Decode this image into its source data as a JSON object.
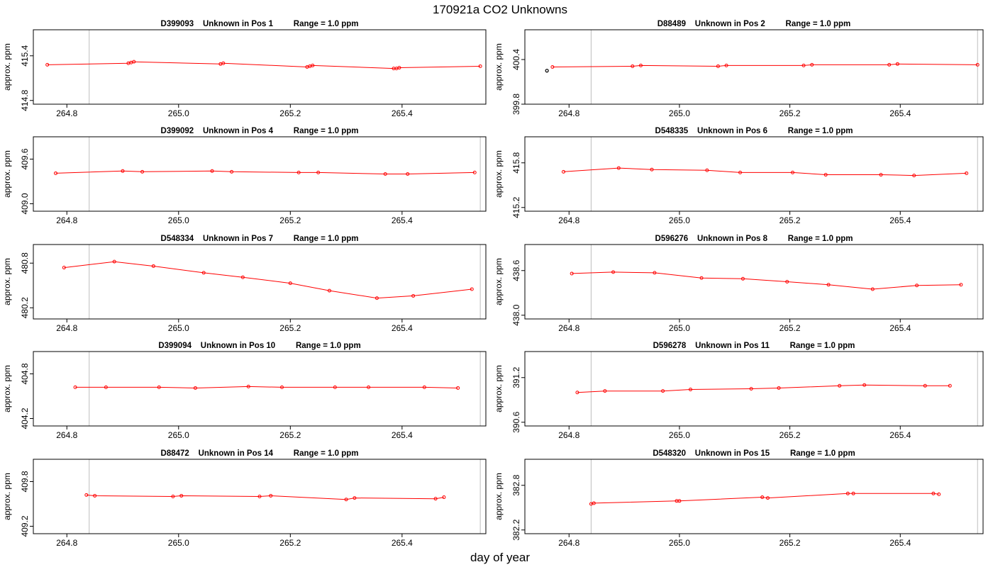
{
  "figure": {
    "title": "170921a  CO2 Unknowns",
    "xlabel": "day of year",
    "ylabel": "approx. ppm"
  },
  "chart_data": [
    {
      "type": "line",
      "title": "D399093    Unknown in Pos 1         Range = 1.0 ppm",
      "xlim": [
        264.74,
        265.55
      ],
      "ylim": [
        414.75,
        415.75
      ],
      "xticks": [
        "264.8",
        "265.0",
        "265.2",
        "265.4"
      ],
      "yticks": [
        "414.8",
        "415.4"
      ],
      "vlines": [
        264.84,
        265.55
      ],
      "x": [
        264.765,
        264.91,
        264.915,
        264.92,
        265.075,
        265.08,
        265.23,
        265.235,
        265.24,
        265.385,
        265.39,
        265.395,
        265.54
      ],
      "y": [
        415.28,
        415.3,
        415.31,
        415.32,
        415.29,
        415.3,
        415.25,
        415.26,
        415.27,
        415.23,
        415.23,
        415.24,
        415.26
      ]
    },
    {
      "type": "line",
      "title": "D88489    Unknown in Pos 2         Range = 1.0 ppm",
      "xlim": [
        264.72,
        265.55
      ],
      "ylim": [
        399.8,
        400.8
      ],
      "xticks": [
        "264.8",
        "265.0",
        "265.2",
        "265.4"
      ],
      "yticks": [
        "399.8",
        "400.4"
      ],
      "vlines": [
        264.84,
        265.54
      ],
      "x": [
        264.77,
        264.915,
        264.93,
        265.07,
        265.085,
        265.225,
        265.24,
        265.38,
        265.395,
        265.54
      ],
      "y": [
        400.3,
        400.31,
        400.32,
        400.31,
        400.32,
        400.32,
        400.33,
        400.33,
        400.34,
        400.33
      ],
      "outlier": {
        "x": 264.76,
        "y": 400.25
      }
    },
    {
      "type": "line",
      "title": "D399092    Unknown in Pos 4         Range = 1.0 ppm",
      "xlim": [
        264.74,
        265.55
      ],
      "ylim": [
        408.9,
        409.9
      ],
      "xticks": [
        "264.8",
        "265.0",
        "265.2",
        "265.4"
      ],
      "yticks": [
        "409.0",
        "409.6"
      ],
      "vlines": [
        264.84,
        265.54
      ],
      "x": [
        264.78,
        264.9,
        264.935,
        265.06,
        265.095,
        265.215,
        265.25,
        265.37,
        265.41,
        265.53
      ],
      "y": [
        409.41,
        409.44,
        409.43,
        409.44,
        409.43,
        409.42,
        409.42,
        409.4,
        409.4,
        409.42
      ]
    },
    {
      "type": "line",
      "title": "D548335    Unknown in Pos 6         Range = 1.0 ppm",
      "xlim": [
        264.72,
        265.55
      ],
      "ylim": [
        415.15,
        416.15
      ],
      "xticks": [
        "264.8",
        "265.0",
        "265.2",
        "265.4"
      ],
      "yticks": [
        "415.2",
        "415.8"
      ],
      "vlines": [
        264.84,
        265.54
      ],
      "x": [
        264.79,
        264.89,
        264.95,
        265.05,
        265.11,
        265.205,
        265.265,
        265.365,
        265.425,
        265.52
      ],
      "y": [
        415.68,
        415.73,
        415.71,
        415.7,
        415.67,
        415.67,
        415.64,
        415.64,
        415.63,
        415.66
      ]
    },
    {
      "type": "line",
      "title": "D548334    Unknown in Pos 7         Range = 1.0 ppm",
      "xlim": [
        264.74,
        265.55
      ],
      "ylim": [
        480.05,
        481.05
      ],
      "xticks": [
        "264.8",
        "265.0",
        "265.2",
        "265.4"
      ],
      "yticks": [
        "480.2",
        "480.8"
      ],
      "vlines": [
        264.84,
        265.54
      ],
      "x": [
        264.795,
        264.885,
        264.955,
        265.045,
        265.115,
        265.2,
        265.27,
        265.355,
        265.42,
        265.525
      ],
      "y": [
        480.74,
        480.82,
        480.76,
        480.67,
        480.61,
        480.53,
        480.43,
        480.33,
        480.36,
        480.45
      ]
    },
    {
      "type": "line",
      "title": "D596276    Unknown in Pos 8         Range = 1.0 ppm",
      "xlim": [
        264.72,
        265.55
      ],
      "ylim": [
        437.95,
        438.95
      ],
      "xticks": [
        "264.8",
        "265.0",
        "265.2",
        "265.4"
      ],
      "yticks": [
        "438.0",
        "438.6"
      ],
      "vlines": [
        264.84,
        265.54
      ],
      "x": [
        264.805,
        264.88,
        264.955,
        265.04,
        265.115,
        265.195,
        265.27,
        265.35,
        265.43,
        265.51
      ],
      "y": [
        438.56,
        438.58,
        438.57,
        438.5,
        438.49,
        438.45,
        438.41,
        438.35,
        438.4,
        438.41
      ]
    },
    {
      "type": "line",
      "title": "D399094    Unknown in Pos 10         Range = 1.0 ppm",
      "xlim": [
        264.74,
        265.55
      ],
      "ylim": [
        404.1,
        405.1
      ],
      "xticks": [
        "264.8",
        "265.0",
        "265.2",
        "265.4"
      ],
      "yticks": [
        "404.2",
        "404.8"
      ],
      "vlines": [
        264.84,
        265.54
      ],
      "x": [
        264.815,
        264.87,
        264.965,
        265.03,
        265.125,
        265.185,
        265.28,
        265.34,
        265.44,
        265.5
      ],
      "y": [
        404.62,
        404.62,
        404.62,
        404.61,
        404.63,
        404.62,
        404.62,
        404.62,
        404.62,
        404.61
      ]
    },
    {
      "type": "line",
      "title": "D596278    Unknown in Pos 11         Range = 1.0 ppm",
      "xlim": [
        264.72,
        265.55
      ],
      "ylim": [
        390.55,
        391.55
      ],
      "xticks": [
        "264.8",
        "265.0",
        "265.2",
        "265.4"
      ],
      "yticks": [
        "390.6",
        "391.2"
      ],
      "vlines": [
        264.84,
        265.54
      ],
      "x": [
        264.815,
        264.865,
        264.97,
        265.02,
        265.13,
        265.18,
        265.29,
        265.335,
        265.445,
        265.49
      ],
      "y": [
        391.0,
        391.02,
        391.02,
        391.04,
        391.05,
        391.06,
        391.09,
        391.1,
        391.09,
        391.09
      ]
    },
    {
      "type": "line",
      "title": "D88472    Unknown in Pos 14         Range = 1.0 ppm",
      "xlim": [
        264.74,
        265.55
      ],
      "ylim": [
        409.1,
        410.1
      ],
      "xticks": [
        "264.8",
        "265.0",
        "265.2",
        "265.4"
      ],
      "yticks": [
        "409.2",
        "409.8"
      ],
      "vlines": [
        264.84,
        265.54
      ],
      "x": [
        264.835,
        264.85,
        264.99,
        265.005,
        265.145,
        265.165,
        265.3,
        265.315,
        265.46,
        265.475
      ],
      "y": [
        409.62,
        409.61,
        409.6,
        409.61,
        409.6,
        409.61,
        409.56,
        409.58,
        409.57,
        409.59
      ]
    },
    {
      "type": "line",
      "title": "D548320    Unknown in Pos 15         Range = 1.0 ppm",
      "xlim": [
        264.72,
        265.55
      ],
      "ylim": [
        382.15,
        383.15
      ],
      "xticks": [
        "264.8",
        "265.0",
        "265.2",
        "265.4"
      ],
      "yticks": [
        "382.2",
        "382.8"
      ],
      "vlines": [
        264.84,
        265.54
      ],
      "x": [
        264.84,
        264.845,
        264.995,
        265.0,
        265.15,
        265.16,
        265.305,
        265.315,
        265.46,
        265.47
      ],
      "y": [
        382.55,
        382.56,
        382.59,
        382.59,
        382.64,
        382.63,
        382.69,
        382.69,
        382.69,
        382.68
      ]
    }
  ]
}
